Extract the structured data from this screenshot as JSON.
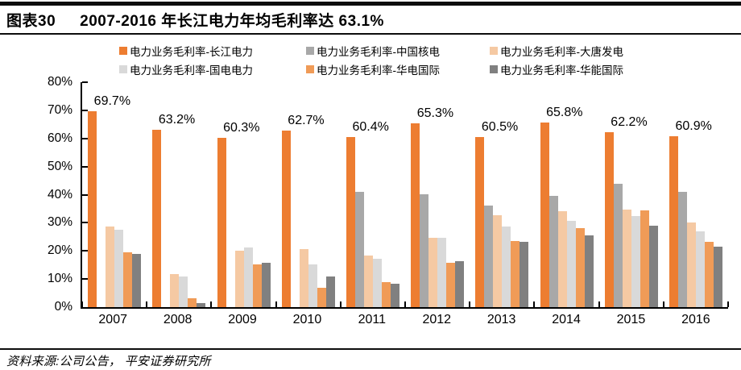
{
  "header": {
    "tag": "图表30",
    "title": "2007-2016 年长江电力年均毛利率达 63.1%"
  },
  "footer": {
    "source": "资料来源:公司公告， 平安证券研究所"
  },
  "chart_data": {
    "type": "bar",
    "title": "2007-2016 年长江电力年均毛利率达 63.1%",
    "categories": [
      "2007",
      "2008",
      "2009",
      "2010",
      "2011",
      "2012",
      "2013",
      "2014",
      "2015",
      "2016"
    ],
    "series": [
      {
        "name": "电力业务毛利率-长江电力",
        "color": "#ED7D31",
        "values": [
          69.7,
          63.2,
          60.3,
          62.7,
          60.4,
          65.3,
          60.5,
          65.8,
          62.2,
          60.9
        ]
      },
      {
        "name": "电力业务毛利率-中国核电",
        "color": "#A8A8A8",
        "values": [
          null,
          null,
          null,
          null,
          41.0,
          40.2,
          36.1,
          39.7,
          44.0,
          41.0
        ]
      },
      {
        "name": "电力业务毛利率-大唐发电",
        "color": "#F5C9A3",
        "values": [
          28.8,
          11.8,
          20.1,
          20.6,
          18.3,
          24.7,
          32.6,
          34.0,
          34.8,
          30.1
        ]
      },
      {
        "name": "电力业务毛利率-国电电力",
        "color": "#D9D9D9",
        "values": [
          27.6,
          11.0,
          21.2,
          15.2,
          17.1,
          24.6,
          28.6,
          30.8,
          32.5,
          26.9
        ]
      },
      {
        "name": "电力业务毛利率-华电国际",
        "color": "#F09B57",
        "values": [
          19.4,
          3.2,
          15.3,
          6.8,
          9.0,
          15.9,
          23.4,
          28.1,
          34.4,
          23.2
        ]
      },
      {
        "name": "电力业务毛利率-华能国际",
        "color": "#808080",
        "values": [
          18.8,
          1.3,
          15.9,
          10.8,
          8.3,
          16.4,
          23.2,
          25.4,
          29.1,
          21.5
        ]
      }
    ],
    "bar_labels": [
      "69.7%",
      "63.2%",
      "60.3%",
      "62.7%",
      "60.4%",
      "65.3%",
      "60.5%",
      "65.8%",
      "62.2%",
      "60.9%"
    ],
    "ylim": [
      0,
      80
    ],
    "ytick_step": 10,
    "ytick_suffix": "%",
    "grid": false,
    "legend_position": "top"
  }
}
